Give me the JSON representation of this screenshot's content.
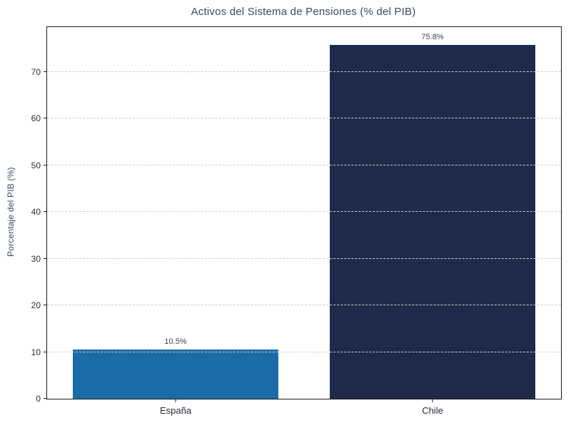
{
  "chart_data": {
    "type": "bar",
    "title": "Activos del Sistema de Pensiones (% del PIB)",
    "categories": [
      "España",
      "Chile"
    ],
    "values": [
      10.5,
      75.8
    ],
    "value_labels": [
      "10.5%",
      "75.8%"
    ],
    "bar_colors": [
      "#1a6ca8",
      "#1f2a4a"
    ],
    "xlabel": "",
    "ylabel": "Porcentaje del PIB (%)",
    "ylim": [
      0,
      79.6
    ],
    "yticks": [
      0,
      10,
      20,
      30,
      40,
      50,
      60,
      70
    ],
    "grid": "horizontal dashed, drawn above bars",
    "legend": "none"
  },
  "colors": {
    "title": "#3c4a63",
    "axis_label": "#3c4a63",
    "tick_label": "#2a2e39",
    "value_label": "#3a4358",
    "gridline": "#cccccc",
    "spine": "#1a1a1a",
    "background": "#ffffff",
    "bar_espana": "#1a6ca8",
    "bar_chile": "#1f2a4a"
  }
}
